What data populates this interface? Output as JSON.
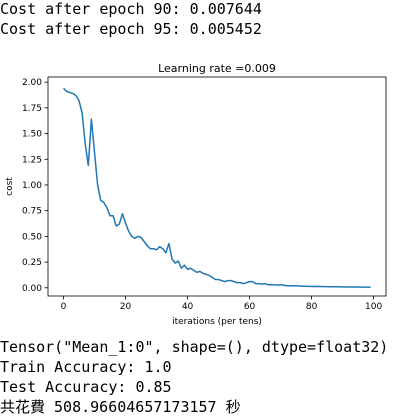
{
  "output_before": [
    "Cost after epoch 90: 0.007644",
    "Cost after epoch 95: 0.005452"
  ],
  "output_after": [
    "Tensor(\"Mean_1:0\", shape=(), dtype=float32)",
    "Train Accuracy: 1.0",
    "Test Accuracy: 0.85",
    "共花費 508.96604657173157 秒"
  ],
  "chart_data": {
    "type": "line",
    "title": "Learning rate =0.009",
    "xlabel": "iterations (per tens)",
    "ylabel": "cost",
    "xlim": [
      -5,
      104
    ],
    "ylim": [
      -0.08,
      2.05
    ],
    "xticks": [
      0,
      20,
      40,
      60,
      80,
      100
    ],
    "xtick_labels": [
      "0",
      "20",
      "40",
      "60",
      "80",
      "100"
    ],
    "yticks": [
      0.0,
      0.25,
      0.5,
      0.75,
      1.0,
      1.25,
      1.5,
      1.75,
      2.0
    ],
    "ytick_labels": [
      "0.00",
      "0.25",
      "0.50",
      "0.75",
      "1.00",
      "1.25",
      "1.50",
      "1.75",
      "2.00"
    ],
    "grid": false,
    "line_color": "#1f77b4",
    "series": [
      {
        "name": "cost",
        "x": [
          0,
          1,
          2,
          3,
          4,
          5,
          6,
          7,
          8,
          9,
          10,
          11,
          12,
          13,
          14,
          15,
          16,
          17,
          18,
          19,
          20,
          21,
          22,
          23,
          24,
          25,
          26,
          27,
          28,
          29,
          30,
          31,
          32,
          33,
          34,
          35,
          36,
          37,
          38,
          39,
          40,
          41,
          42,
          43,
          44,
          45,
          46,
          47,
          48,
          49,
          50,
          51,
          52,
          53,
          54,
          55,
          56,
          57,
          58,
          59,
          60,
          61,
          62,
          63,
          64,
          65,
          66,
          67,
          68,
          69,
          70,
          71,
          72,
          73,
          74,
          75,
          76,
          77,
          78,
          79,
          80,
          81,
          82,
          83,
          84,
          85,
          86,
          87,
          88,
          89,
          90,
          91,
          92,
          93,
          94,
          95,
          96,
          97,
          98,
          99
        ],
        "values": [
          1.94,
          1.91,
          1.9,
          1.89,
          1.87,
          1.82,
          1.7,
          1.4,
          1.19,
          1.64,
          1.32,
          1.0,
          0.85,
          0.83,
          0.78,
          0.7,
          0.7,
          0.6,
          0.62,
          0.72,
          0.63,
          0.55,
          0.5,
          0.48,
          0.5,
          0.49,
          0.45,
          0.41,
          0.38,
          0.38,
          0.37,
          0.4,
          0.38,
          0.34,
          0.43,
          0.28,
          0.24,
          0.26,
          0.19,
          0.22,
          0.18,
          0.19,
          0.17,
          0.15,
          0.16,
          0.14,
          0.13,
          0.12,
          0.1,
          0.08,
          0.08,
          0.07,
          0.06,
          0.07,
          0.07,
          0.06,
          0.05,
          0.05,
          0.04,
          0.05,
          0.06,
          0.06,
          0.04,
          0.04,
          0.035,
          0.04,
          0.03,
          0.03,
          0.03,
          0.025,
          0.03,
          0.025,
          0.02,
          0.02,
          0.02,
          0.018,
          0.018,
          0.015,
          0.015,
          0.014,
          0.014,
          0.013,
          0.012,
          0.012,
          0.011,
          0.011,
          0.01,
          0.01,
          0.01,
          0.009,
          0.009,
          0.008,
          0.008,
          0.008,
          0.007,
          0.007,
          0.006,
          0.006,
          0.006,
          0.005
        ]
      }
    ]
  }
}
